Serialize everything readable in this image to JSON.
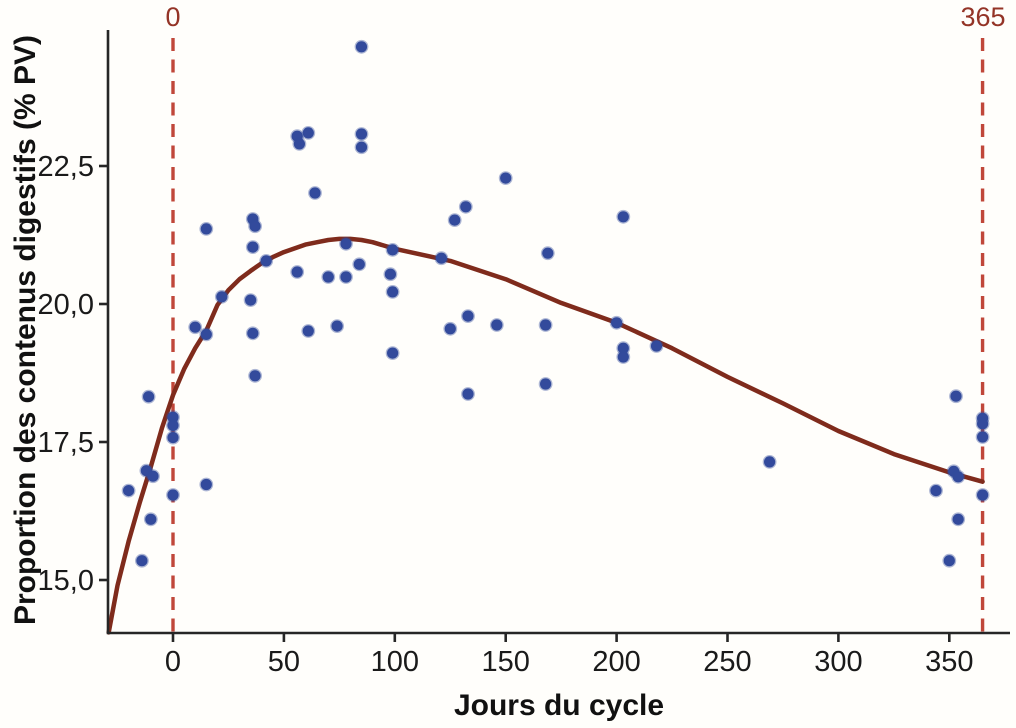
{
  "chart_data": {
    "type": "scatter",
    "title": "",
    "xlabel": "Jours du cycle",
    "ylabel": "Proportion des contenus digestifs (% PV)",
    "xlim": [
      -29,
      380
    ],
    "ylim": [
      14.0,
      25.0
    ],
    "grid": false,
    "legend": "none",
    "x_ticks": [
      0,
      50,
      100,
      150,
      200,
      250,
      300,
      350
    ],
    "x_tick_labels": [
      "0",
      "50",
      "100",
      "150",
      "200",
      "250",
      "300",
      "350"
    ],
    "y_ticks": [
      15.0,
      17.5,
      20.0,
      22.5
    ],
    "y_tick_labels": [
      "15,0",
      "17,5",
      "20,0",
      "22,5"
    ],
    "reference_lines": {
      "x_values": [
        0,
        365
      ],
      "labels": [
        "0",
        "365"
      ],
      "style": "dashed",
      "color": "#c0473a",
      "label_color": "#943427"
    },
    "point_color": "#334a9c",
    "point_halo_color": "rgba(51,74,156,0.40)",
    "points": [
      [
        -20,
        16.62
      ],
      [
        -14,
        15.35
      ],
      [
        -12,
        16.98
      ],
      [
        -9,
        16.88
      ],
      [
        -11,
        18.32
      ],
      [
        -10,
        16.1
      ],
      [
        0,
        17.95
      ],
      [
        0,
        17.8
      ],
      [
        0,
        17.58
      ],
      [
        0,
        16.54
      ],
      [
        15,
        16.73
      ],
      [
        15,
        21.36
      ],
      [
        10,
        19.58
      ],
      [
        15,
        19.45
      ],
      [
        22,
        20.13
      ],
      [
        35,
        20.07
      ],
      [
        36,
        21.54
      ],
      [
        37,
        21.41
      ],
      [
        36,
        21.03
      ],
      [
        36,
        19.47
      ],
      [
        37,
        18.7
      ],
      [
        42,
        20.78
      ],
      [
        56,
        20.58
      ],
      [
        56,
        23.04
      ],
      [
        61,
        23.1
      ],
      [
        57,
        22.9
      ],
      [
        64,
        22.01
      ],
      [
        61,
        19.51
      ],
      [
        70,
        20.49
      ],
      [
        78,
        20.49
      ],
      [
        74,
        19.6
      ],
      [
        78,
        21.09
      ],
      [
        85,
        24.66
      ],
      [
        85,
        23.08
      ],
      [
        85,
        22.84
      ],
      [
        84,
        20.72
      ],
      [
        99,
        20.98
      ],
      [
        98,
        20.54
      ],
      [
        99,
        20.22
      ],
      [
        99,
        19.11
      ],
      [
        121,
        20.83
      ],
      [
        125,
        19.55
      ],
      [
        127,
        21.52
      ],
      [
        132,
        21.76
      ],
      [
        133,
        18.37
      ],
      [
        133,
        19.78
      ],
      [
        146,
        19.62
      ],
      [
        150,
        22.28
      ],
      [
        168,
        19.62
      ],
      [
        168,
        18.55
      ],
      [
        169,
        20.92
      ],
      [
        200,
        19.66
      ],
      [
        203,
        21.58
      ],
      [
        203,
        19.2
      ],
      [
        203,
        19.04
      ],
      [
        218,
        19.24
      ],
      [
        269,
        17.14
      ],
      [
        353,
        18.33
      ],
      [
        365,
        17.93
      ],
      [
        365,
        17.83
      ],
      [
        365,
        17.59
      ],
      [
        352,
        16.97
      ],
      [
        354,
        16.87
      ],
      [
        344,
        16.62
      ],
      [
        365,
        16.54
      ],
      [
        354,
        16.1
      ],
      [
        350,
        15.35
      ]
    ],
    "trend_curve": {
      "color": "#7f2b1c",
      "points": [
        [
          -29,
          14.05
        ],
        [
          -25,
          14.9
        ],
        [
          -20,
          15.7
        ],
        [
          -15,
          16.4
        ],
        [
          -10,
          17.05
        ],
        [
          -5,
          17.75
        ],
        [
          0,
          18.35
        ],
        [
          5,
          18.82
        ],
        [
          10,
          19.2
        ],
        [
          15,
          19.52
        ],
        [
          20,
          19.98
        ],
        [
          25,
          20.25
        ],
        [
          30,
          20.45
        ],
        [
          35,
          20.6
        ],
        [
          40,
          20.74
        ],
        [
          45,
          20.85
        ],
        [
          50,
          20.94
        ],
        [
          55,
          21.01
        ],
        [
          60,
          21.08
        ],
        [
          65,
          21.12
        ],
        [
          70,
          21.16
        ],
        [
          75,
          21.18
        ],
        [
          80,
          21.18
        ],
        [
          85,
          21.16
        ],
        [
          90,
          21.12
        ],
        [
          95,
          21.06
        ],
        [
          100,
          21.0
        ],
        [
          125,
          20.78
        ],
        [
          150,
          20.45
        ],
        [
          175,
          20.02
        ],
        [
          200,
          19.66
        ],
        [
          225,
          19.2
        ],
        [
          250,
          18.68
        ],
        [
          275,
          18.2
        ],
        [
          300,
          17.7
        ],
        [
          325,
          17.28
        ],
        [
          350,
          16.95
        ],
        [
          365,
          16.78
        ]
      ]
    },
    "axis_color": "#262626",
    "tick_label_color": "#1a1a1a"
  }
}
